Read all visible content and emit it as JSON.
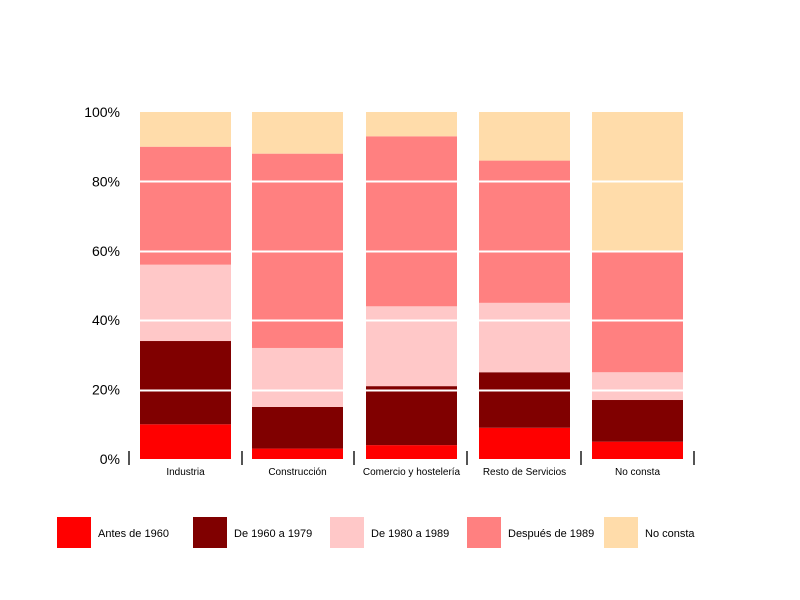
{
  "chart_data": {
    "type": "bar",
    "stacked": true,
    "percent": true,
    "categories": [
      "Industria",
      "Construcción",
      "Comercio y hostelería",
      "Resto de Servicios",
      "No consta"
    ],
    "series": [
      {
        "name": "Antes de 1960",
        "color": "#ff0000",
        "values": [
          10,
          3,
          4,
          9,
          5
        ]
      },
      {
        "name": "De 1960 a 1979",
        "color": "#800000",
        "values": [
          24,
          12,
          17,
          16,
          12
        ]
      },
      {
        "name": "De 1980 a 1989",
        "color": "#ffc8c8",
        "values": [
          22,
          17,
          23,
          20,
          8
        ]
      },
      {
        "name": "Después de 1989",
        "color": "#ff8080",
        "values": [
          34,
          56,
          49,
          41,
          35
        ]
      },
      {
        "name": "No consta",
        "color": "#ffdcaa",
        "values": [
          10,
          12,
          7,
          14,
          40
        ]
      }
    ],
    "ylim": [
      0,
      100
    ],
    "yticks": [
      "0%",
      "20%",
      "40%",
      "60%",
      "80%",
      "100%"
    ],
    "grid": true,
    "legend_position": "bottom"
  }
}
